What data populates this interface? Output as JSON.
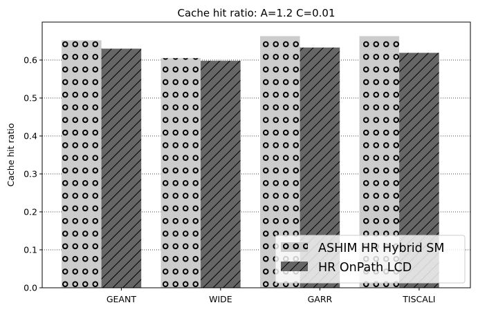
{
  "chart_data": {
    "type": "bar",
    "title": "Cache hit ratio: A=1.2 C=0.01",
    "xlabel": "",
    "ylabel": "Cache hit ratio",
    "categories": [
      "GEANT",
      "WIDE",
      "GARR",
      "TISCALI"
    ],
    "ylim": [
      0,
      0.7
    ],
    "yticks": [
      0.0,
      0.1,
      0.2,
      0.3,
      0.4,
      0.5,
      0.6
    ],
    "ytick_labels": [
      "0.0",
      "0.1",
      "0.2",
      "0.3",
      "0.4",
      "0.5",
      "0.6"
    ],
    "grid": "y-dotted",
    "legend_position": "bottom-right",
    "series": [
      {
        "name": "ASHIM HR Hybrid SM",
        "values": [
          0.652,
          0.605,
          0.663,
          0.663
        ],
        "color": "#cccccc",
        "hatch": "circles"
      },
      {
        "name": "HR OnPath LCD",
        "values": [
          0.63,
          0.598,
          0.633,
          0.619
        ],
        "color": "#666666",
        "hatch": "diagonal"
      }
    ]
  }
}
